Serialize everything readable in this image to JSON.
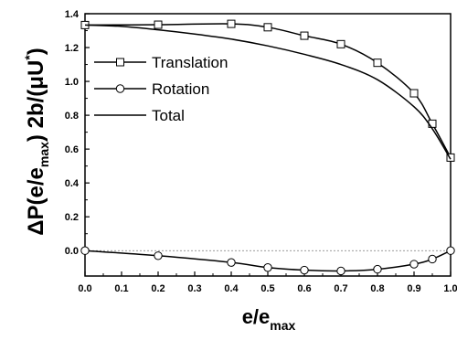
{
  "chart_data": {
    "type": "line",
    "xlabel": {
      "base": "e/e",
      "sub": "max"
    },
    "ylabel": {
      "p1": "ΔP(e/e",
      "sub": "max",
      "p2": ") 2b/(μU",
      "sup": "*",
      "p3": ")"
    },
    "xlim": [
      0.0,
      1.0
    ],
    "ylim": [
      -0.15,
      1.4
    ],
    "x_ticks": [
      0.0,
      0.1,
      0.2,
      0.3,
      0.4,
      0.5,
      0.6,
      0.7,
      0.8,
      0.9,
      1.0
    ],
    "x_tick_labels": [
      "0.0",
      "0.1",
      "0.2",
      "0.3",
      "0.4",
      "0.5",
      "0.6",
      "0.7",
      "0.8",
      "0.9",
      "1.0"
    ],
    "y_ticks": [
      0.0,
      0.2,
      0.4,
      0.6,
      0.8,
      1.0,
      1.2,
      1.4
    ],
    "y_tick_labels": [
      "0.0",
      "0.2",
      "0.4",
      "0.6",
      "0.8",
      "1.0",
      "1.2",
      "1.4"
    ],
    "zero_line": true,
    "grid": false,
    "legend": {
      "placement": "top-left"
    },
    "series": [
      {
        "name": "Translation",
        "marker": "square",
        "x": [
          0.0,
          0.2,
          0.4,
          0.5,
          0.6,
          0.7,
          0.8,
          0.9,
          0.95,
          1.0
        ],
        "y": [
          1.333,
          1.335,
          1.34,
          1.32,
          1.27,
          1.22,
          1.11,
          0.93,
          0.75,
          0.55
        ]
      },
      {
        "name": "Rotation",
        "marker": "circle",
        "x": [
          0.0,
          0.2,
          0.4,
          0.5,
          0.6,
          0.7,
          0.8,
          0.9,
          0.95,
          1.0
        ],
        "y": [
          0.0,
          -0.03,
          -0.07,
          -0.1,
          -0.115,
          -0.12,
          -0.11,
          -0.08,
          -0.05,
          0.0
        ]
      },
      {
        "name": "Total",
        "marker": "none",
        "x": [
          0.0,
          0.1,
          0.2,
          0.3,
          0.4,
          0.5,
          0.6,
          0.7,
          0.8,
          0.9,
          0.95,
          1.0
        ],
        "y": [
          1.333,
          1.325,
          1.305,
          1.28,
          1.25,
          1.21,
          1.16,
          1.1,
          1.01,
          0.85,
          0.72,
          0.54
        ]
      }
    ]
  }
}
